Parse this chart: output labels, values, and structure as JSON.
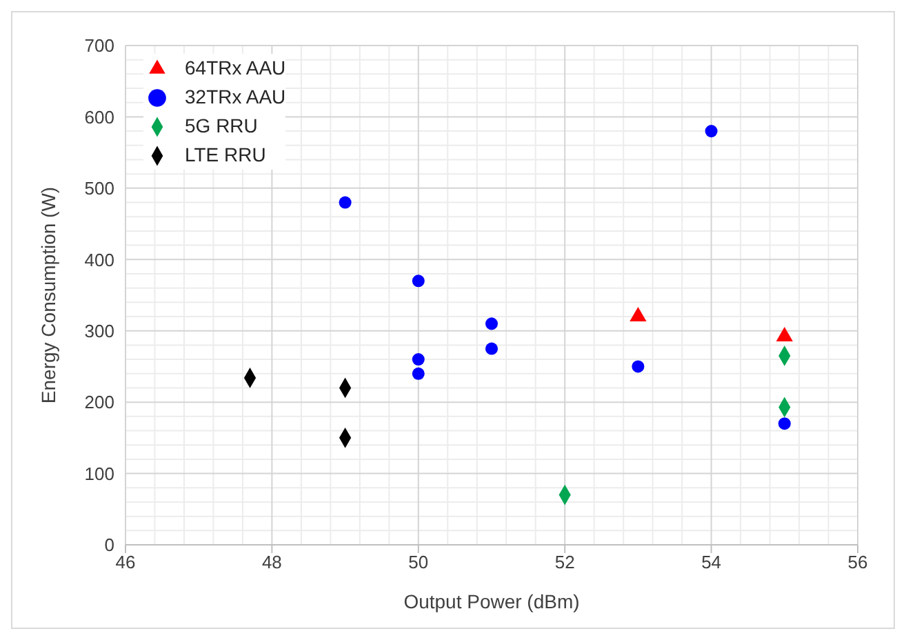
{
  "chart_data": {
    "type": "scatter",
    "xlabel": "Output Power (dBm)",
    "ylabel": "Energy Consumption (W)",
    "xlim": [
      46,
      56
    ],
    "xticks": [
      46,
      48,
      50,
      52,
      54,
      56
    ],
    "ylim": [
      0,
      700
    ],
    "yticks": [
      0,
      100,
      200,
      300,
      400,
      500,
      600,
      700
    ],
    "grid": true,
    "legend": "top left",
    "series": [
      {
        "name": "64TRx AAU",
        "color": "#ff0000",
        "marker": "triangle",
        "x": [
          53,
          55
        ],
        "values": [
          320,
          292
        ]
      },
      {
        "name": "32TRx AAU",
        "color": "#0000ff",
        "marker": "circle",
        "x": [
          49,
          50,
          50,
          50,
          51,
          51,
          53,
          54,
          55
        ],
        "values": [
          480,
          370,
          260,
          240,
          310,
          275,
          250,
          580,
          170
        ]
      },
      {
        "name": "5G RRU",
        "color": "#00a651",
        "marker": "diamond",
        "x": [
          52,
          55,
          55
        ],
        "values": [
          70,
          265,
          193
        ]
      },
      {
        "name": "LTE RRU",
        "color": "#000000",
        "marker": "diamond",
        "x": [
          47.7,
          49,
          49
        ],
        "values": [
          234,
          220,
          150
        ]
      }
    ]
  }
}
